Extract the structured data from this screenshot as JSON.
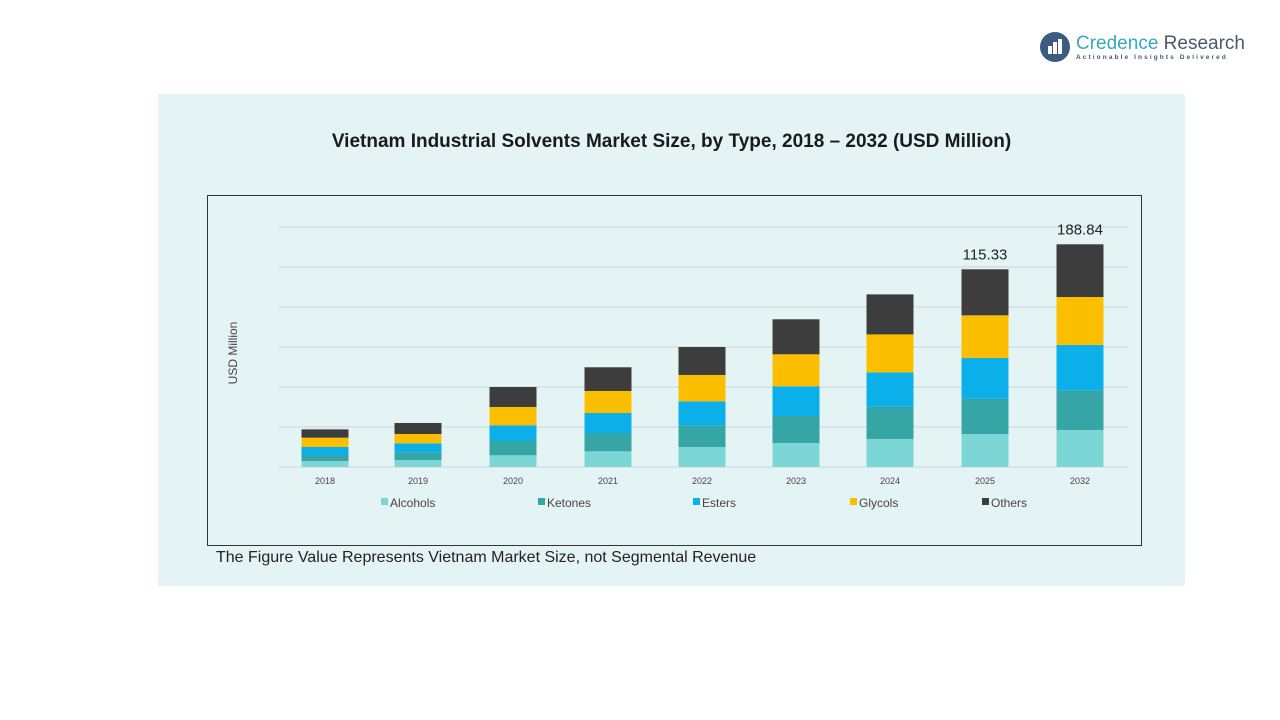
{
  "logo": {
    "name_part1": "Credence",
    "name_part2": "Research",
    "tagline": "Actionable Insights Delivered"
  },
  "footnote": "The Figure Value Represents Vietnam Market Size, not Segmental Revenue",
  "chart_data": {
    "type": "bar",
    "stacked": true,
    "title": "Vietnam Industrial Solvents Market Size, by Type, 2018 – 2032 (USD Million)",
    "xlabel": "",
    "ylabel": "USD Million",
    "grid": true,
    "legend": "bottom",
    "categories": [
      "2018",
      "2019",
      "2020",
      "2021",
      "2022",
      "2023",
      "2024",
      "2025",
      "2032"
    ],
    "series": [
      {
        "name": "Alcohols",
        "color": "#7dd6d6",
        "values": [
          3.5,
          4.08,
          6.83,
          9.16,
          11.67,
          14.0,
          16.34,
          19.25,
          31.37
        ]
      },
      {
        "name": "Ketones",
        "color": "#35a5a5",
        "values": [
          3.5,
          4.49,
          8.34,
          10.68,
          12.66,
          15.75,
          18.84,
          20.59,
          33.67
        ]
      },
      {
        "name": "Esters",
        "color": "#0bb0ea",
        "values": [
          4.67,
          5.25,
          9.16,
          11.67,
          14.0,
          17.33,
          20.01,
          23.74,
          38.42
        ]
      },
      {
        "name": "Glycols",
        "color": "#fcbf00",
        "values": [
          5.44,
          5.43,
          10.68,
          12.83,
          15.34,
          18.67,
          22.17,
          24.91,
          40.7
        ]
      },
      {
        "name": "Others",
        "color": "#3d3d3d",
        "values": [
          4.84,
          6.42,
          11.67,
          13.83,
          16.34,
          20.42,
          23.34,
          26.84,
          44.68
        ]
      }
    ],
    "total_labels": {
      "2025": "115.33",
      "2032": "188.84"
    }
  }
}
